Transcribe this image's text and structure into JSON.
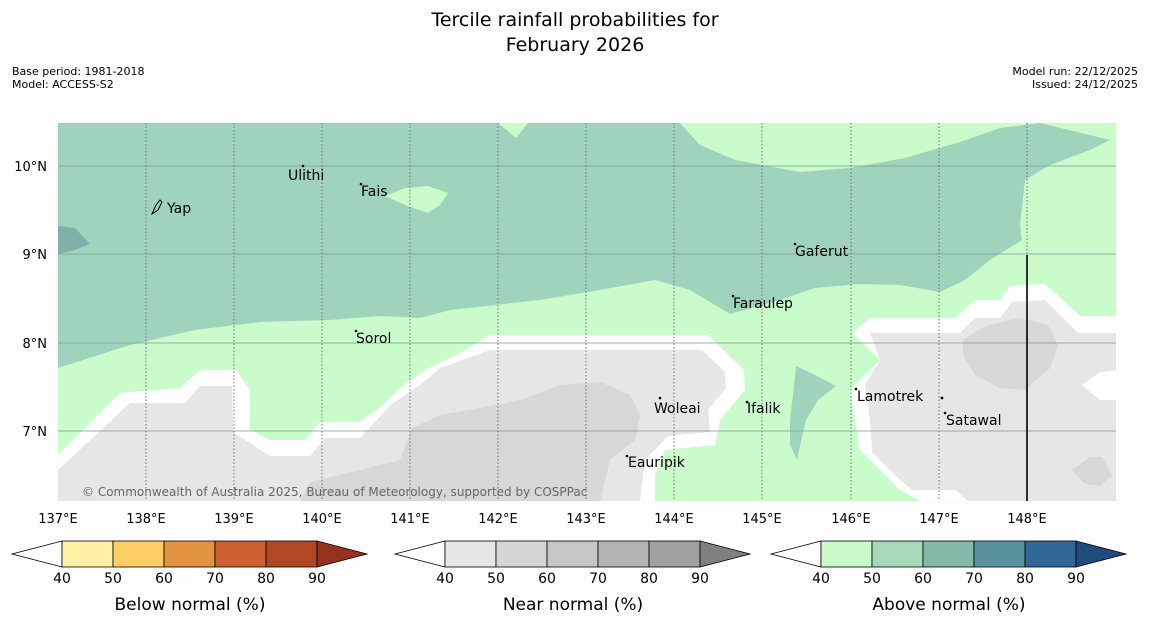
{
  "title": {
    "line1": "Tercile rainfall probabilities for",
    "line2": "February 2026"
  },
  "meta_left": {
    "base_period": "Base period: 1981-2018",
    "model": "Model: ACCESS-S2"
  },
  "meta_right": {
    "model_run": "Model run: 22/12/2025",
    "issued": "Issued: 24/12/2025"
  },
  "map": {
    "lat_labels": [
      "10°N",
      "9°N",
      "8°N",
      "7°N"
    ],
    "lon_labels": [
      "137°E",
      "138°E",
      "139°E",
      "140°E",
      "141°E",
      "142°E",
      "143°E",
      "144°E",
      "145°E",
      "146°E",
      "147°E",
      "148°E"
    ],
    "places": [
      "Ulithi",
      "Yap",
      "Fais",
      "Gaferut",
      "Faraulep",
      "Sorol",
      "Woleai",
      "Ifalik",
      "Lamotrek",
      "Satawal",
      "Eauripik"
    ],
    "credit": "© Commonwealth of Australia 2025, Bureau of Meteorology, supported by COSPPac"
  },
  "colorbars": [
    {
      "label": "Below normal (%)",
      "ticks": [
        "40",
        "50",
        "60",
        "70",
        "80",
        "90"
      ],
      "colors": [
        "#fff0a6",
        "#ffcd66",
        "#e29442",
        "#cd6131",
        "#b04824",
        "#963320"
      ]
    },
    {
      "label": "Near normal (%)",
      "ticks": [
        "40",
        "50",
        "60",
        "70",
        "80",
        "90"
      ],
      "colors": [
        "#e6e6e6",
        "#d6d6d6",
        "#c6c6c6",
        "#b3b3b3",
        "#a0a0a0",
        "#808080"
      ]
    },
    {
      "label": "Above normal (%)",
      "ticks": [
        "40",
        "50",
        "60",
        "70",
        "80",
        "90"
      ],
      "colors": [
        "#c9fbcb",
        "#a5d9b7",
        "#84b9a8",
        "#5b929f",
        "#306796",
        "#1f4c7d"
      ]
    }
  ]
}
